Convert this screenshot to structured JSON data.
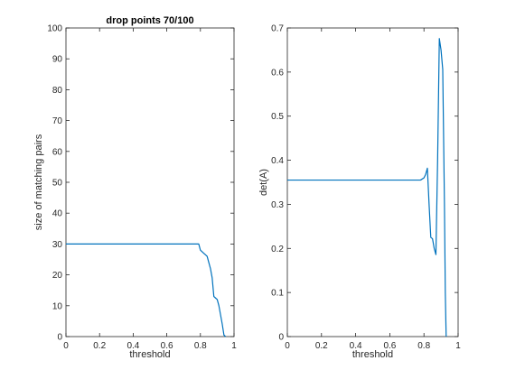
{
  "chart_data": [
    {
      "type": "line",
      "title": "drop points 70/100",
      "xlabel": "threshold",
      "ylabel": "size of matching pairs",
      "xlim": [
        0,
        1
      ],
      "ylim": [
        0,
        100
      ],
      "xticks": [
        0,
        0.2,
        0.4,
        0.6,
        0.8,
        1
      ],
      "xtick_labels": [
        "0",
        "0.2",
        "0.4",
        "0.6",
        "0.8",
        "1"
      ],
      "yticks": [
        0,
        10,
        20,
        30,
        40,
        50,
        60,
        70,
        80,
        90,
        100
      ],
      "ytick_labels": [
        "0",
        "10",
        "20",
        "30",
        "40",
        "50",
        "60",
        "70",
        "80",
        "90",
        "100"
      ],
      "grid": false,
      "color": "#0072bd",
      "series": [
        {
          "x": [
            0,
            0.1,
            0.2,
            0.3,
            0.4,
            0.5,
            0.6,
            0.7,
            0.78,
            0.79,
            0.8,
            0.81,
            0.82,
            0.83,
            0.84,
            0.85,
            0.86,
            0.87,
            0.88,
            0.89,
            0.9,
            0.91,
            0.92,
            0.93,
            0.94,
            0.95
          ],
          "y": [
            30,
            30,
            30,
            30,
            30,
            30,
            30,
            30,
            30,
            30,
            28,
            27.5,
            27,
            26.5,
            26,
            24,
            22,
            19,
            13,
            12.5,
            12,
            10,
            7,
            4,
            0.5,
            0
          ]
        }
      ]
    },
    {
      "type": "line",
      "title": "",
      "xlabel": "threshold",
      "ylabel": "det(A)",
      "xlim": [
        0,
        1
      ],
      "ylim": [
        0,
        0.7
      ],
      "xticks": [
        0,
        0.2,
        0.4,
        0.6,
        0.8,
        1
      ],
      "xtick_labels": [
        "0",
        "0.2",
        "0.4",
        "0.6",
        "0.8",
        "1"
      ],
      "yticks": [
        0,
        0.1,
        0.2,
        0.3,
        0.4,
        0.5,
        0.6,
        0.7
      ],
      "ytick_labels": [
        "0",
        "0.1",
        "0.2",
        "0.3",
        "0.4",
        "0.5",
        "0.6",
        "0.7"
      ],
      "grid": false,
      "color": "#0072bd",
      "series": [
        {
          "x": [
            0,
            0.1,
            0.2,
            0.3,
            0.4,
            0.5,
            0.6,
            0.7,
            0.78,
            0.8,
            0.81,
            0.82,
            0.83,
            0.84,
            0.85,
            0.86,
            0.87,
            0.88,
            0.89,
            0.9,
            0.91,
            0.92,
            0.925,
            0.93
          ],
          "y": [
            0.355,
            0.355,
            0.355,
            0.355,
            0.355,
            0.355,
            0.355,
            0.355,
            0.355,
            0.36,
            0.368,
            0.382,
            0.3,
            0.225,
            0.222,
            0.2,
            0.186,
            0.4,
            0.676,
            0.65,
            0.606,
            0.3,
            0.1,
            0
          ]
        }
      ]
    }
  ]
}
